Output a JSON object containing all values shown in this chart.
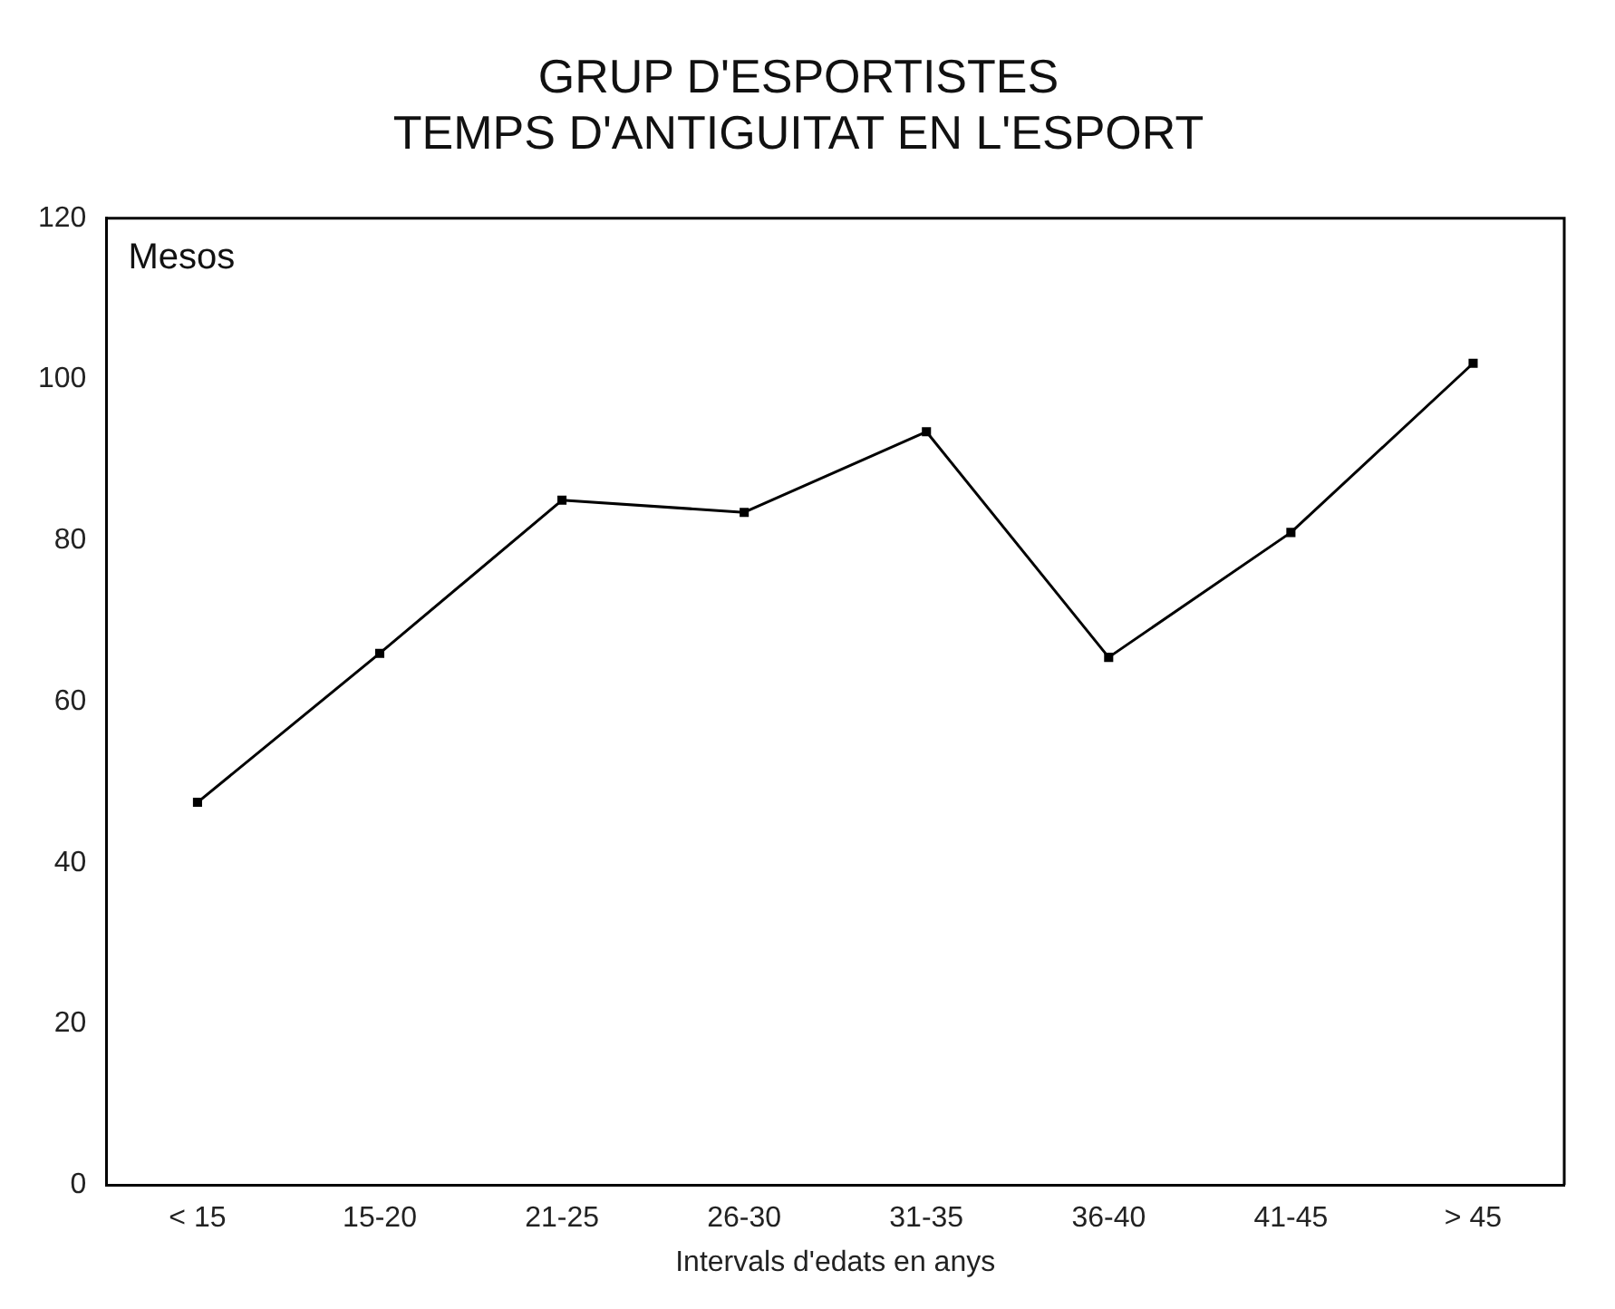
{
  "chart_data": {
    "type": "line",
    "title": [
      "GRUP D'ESPORTISTES",
      "TEMPS D'ANTIGUITAT EN L'ESPORT"
    ],
    "ylabel": "Mesos",
    "xlabel": "Intervals d'edats en anys",
    "categories": [
      "< 15",
      "15-20",
      "21-25",
      "26-30",
      "31-35",
      "36-40",
      "41-45",
      "> 45"
    ],
    "values": [
      47.5,
      66,
      85,
      83.5,
      93.5,
      65.5,
      81,
      102
    ],
    "color": "#000000",
    "ylim": [
      0,
      120
    ],
    "yticks": [
      0,
      20,
      40,
      60,
      80,
      100,
      120
    ],
    "grid": false,
    "legend": false,
    "marker": "square",
    "line_style": "solid"
  }
}
